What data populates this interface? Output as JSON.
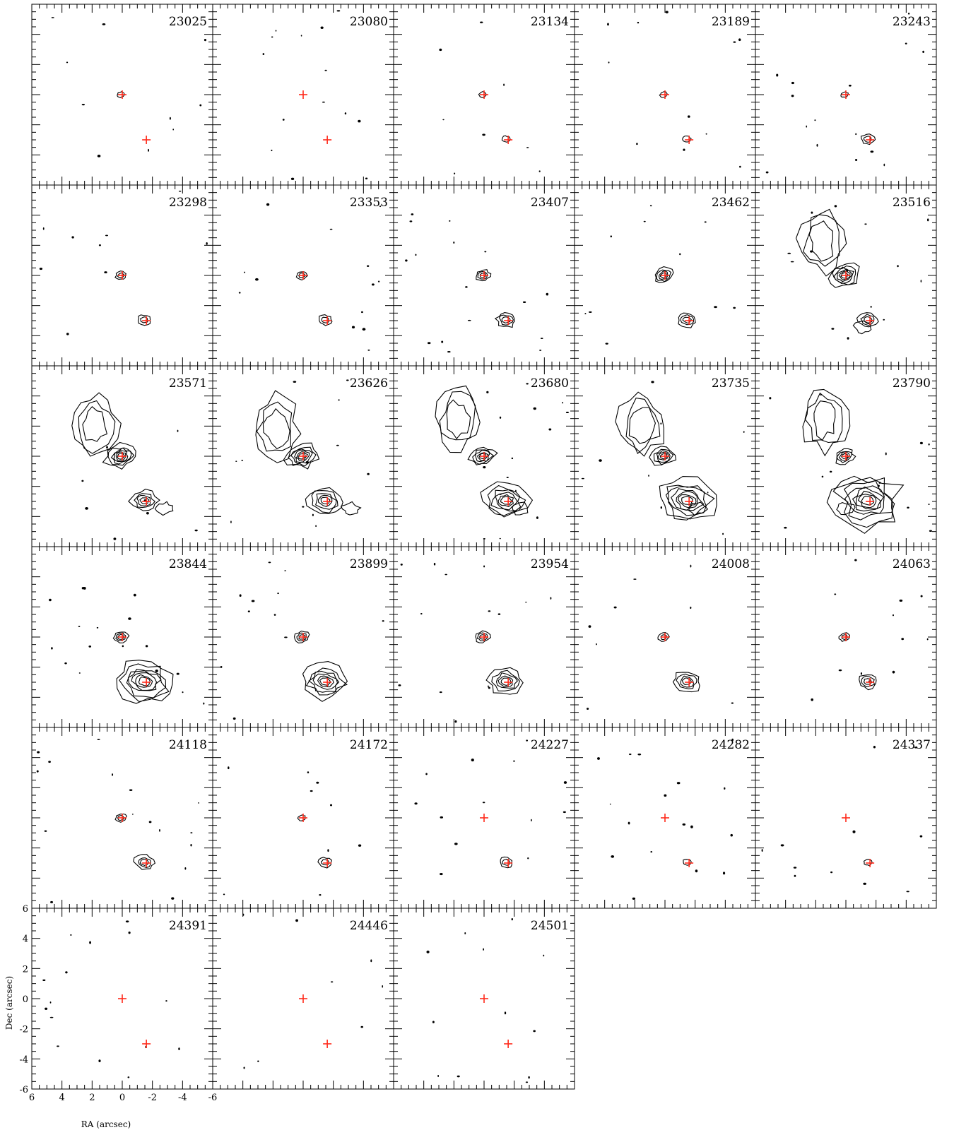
{
  "chart_data": {
    "type": "contour",
    "xlabel": "RA (arcsec)",
    "ylabel": "Dec (arcsec)",
    "xlim": [
      6,
      -6
    ],
    "ylim": [
      -6,
      6
    ],
    "x_ticks": [
      "6",
      "4",
      "2",
      "0",
      "-2",
      "-4",
      "-6"
    ],
    "y_ticks": [
      "6",
      "4",
      "2",
      "0",
      "-2",
      "-4",
      "-6"
    ],
    "markers": [
      {
        "x": 0.0,
        "y": 0.0
      },
      {
        "x": -1.6,
        "y": -3.0
      }
    ],
    "marker_color": "#ff2a1a",
    "contour_color": "#000000",
    "panels": [
      {
        "label": "23025",
        "level_a": 1,
        "level_b": 0,
        "extended": false
      },
      {
        "label": "23080",
        "level_a": 0,
        "level_b": 0,
        "extended": false
      },
      {
        "label": "23134",
        "level_a": 1,
        "level_b": 1,
        "extended": false
      },
      {
        "label": "23189",
        "level_a": 1,
        "level_b": 1,
        "extended": false
      },
      {
        "label": "23243",
        "level_a": 1,
        "level_b": 2,
        "extended": false
      },
      {
        "label": "23298",
        "level_a": 2,
        "level_b": 2,
        "extended": false
      },
      {
        "label": "23353",
        "level_a": 2,
        "level_b": 2,
        "extended": false
      },
      {
        "label": "23407",
        "level_a": 3,
        "level_b": 3,
        "extended": false
      },
      {
        "label": "23462",
        "level_a": 4,
        "level_b": 3,
        "extended": false
      },
      {
        "label": "23516",
        "level_a": 6,
        "level_b": 3,
        "extended": true
      },
      {
        "label": "23571",
        "level_a": 6,
        "level_b": 4,
        "extended": true
      },
      {
        "label": "23626",
        "level_a": 6,
        "level_b": 5,
        "extended": true
      },
      {
        "label": "23680",
        "level_a": 5,
        "level_b": 6,
        "extended": true
      },
      {
        "label": "23735",
        "level_a": 5,
        "level_b": 7,
        "extended": true
      },
      {
        "label": "23790",
        "level_a": 4,
        "level_b": 8,
        "extended": true
      },
      {
        "label": "23844",
        "level_a": 3,
        "level_b": 7,
        "extended": false
      },
      {
        "label": "23899",
        "level_a": 3,
        "level_b": 6,
        "extended": false
      },
      {
        "label": "23954",
        "level_a": 3,
        "level_b": 5,
        "extended": false
      },
      {
        "label": "24008",
        "level_a": 2,
        "level_b": 4,
        "extended": false
      },
      {
        "label": "24063",
        "level_a": 2,
        "level_b": 3,
        "extended": false
      },
      {
        "label": "24118",
        "level_a": 2,
        "level_b": 3,
        "extended": false
      },
      {
        "label": "24172",
        "level_a": 1,
        "level_b": 2,
        "extended": false
      },
      {
        "label": "24227",
        "level_a": 0,
        "level_b": 2,
        "extended": false
      },
      {
        "label": "24282",
        "level_a": 0,
        "level_b": 1,
        "extended": false
      },
      {
        "label": "24337",
        "level_a": 0,
        "level_b": 1,
        "extended": false
      },
      {
        "label": "24391",
        "level_a": 0,
        "level_b": 0,
        "extended": false
      },
      {
        "label": "24446",
        "level_a": 0,
        "level_b": 0,
        "extended": false
      },
      {
        "label": "24501",
        "level_a": 0,
        "level_b": 0,
        "extended": false
      }
    ]
  }
}
